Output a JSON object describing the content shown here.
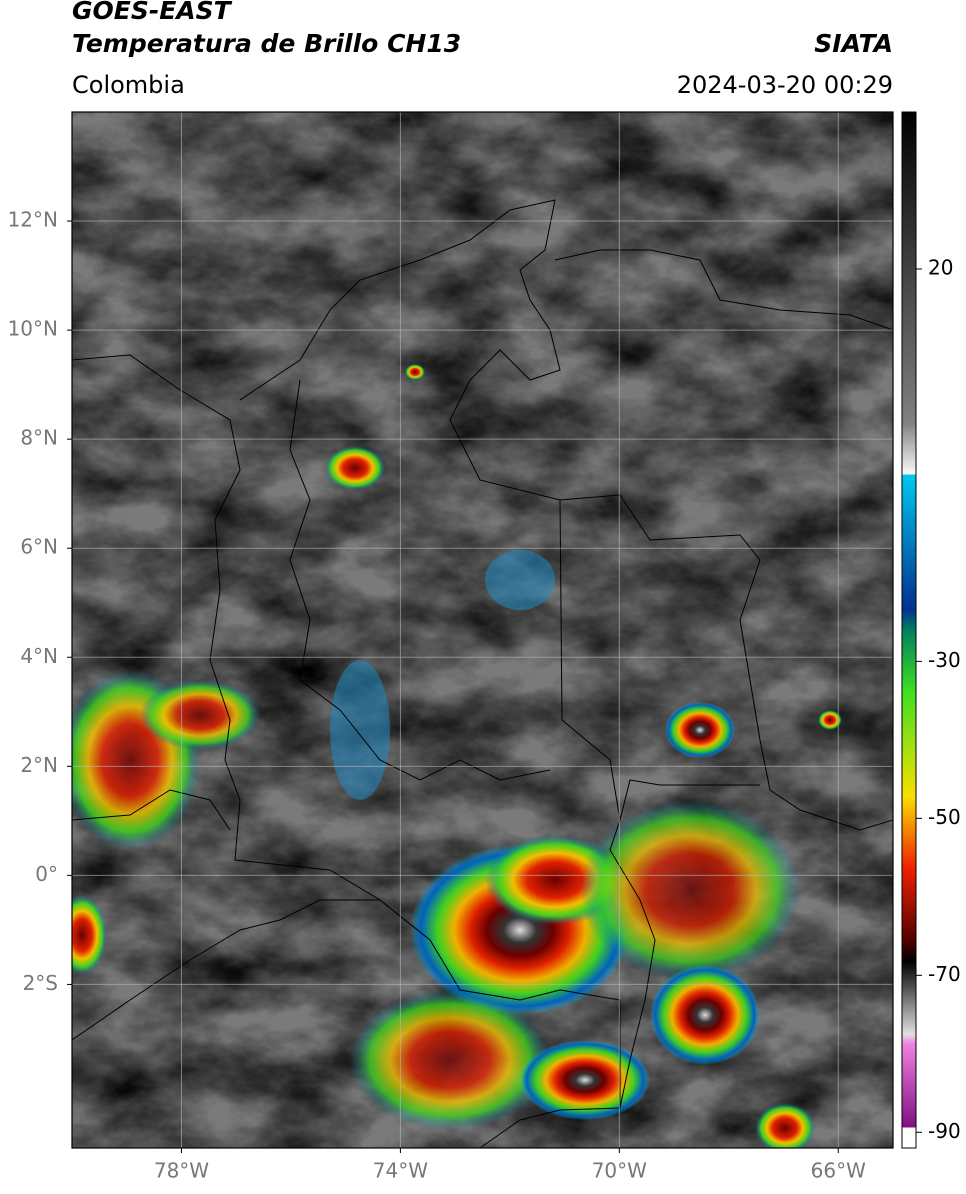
{
  "header": {
    "title_line1": "GOES-EAST",
    "title_line2": "Temperatura de Brillo CH13",
    "source": "SIATA",
    "region": "Colombia",
    "datetime": "2024-03-20 00:29"
  },
  "map": {
    "xlim": [
      -80,
      -65
    ],
    "ylim": [
      -5,
      14
    ],
    "lat_ticks": [
      {
        "value": 12,
        "label": "12°N"
      },
      {
        "value": 10,
        "label": "10°N"
      },
      {
        "value": 8,
        "label": "8°N"
      },
      {
        "value": 6,
        "label": "6°N"
      },
      {
        "value": 4,
        "label": "4°N"
      },
      {
        "value": 2,
        "label": "2°N"
      },
      {
        "value": 0,
        "label": "0°"
      },
      {
        "value": -2,
        "label": "2°S"
      }
    ],
    "lon_ticks": [
      {
        "value": -78,
        "label": "78°W"
      },
      {
        "value": -74,
        "label": "74°W"
      },
      {
        "value": -70,
        "label": "70°W"
      },
      {
        "value": -66,
        "label": "66°W"
      }
    ],
    "grid": true
  },
  "colorbar": {
    "lim": [
      -92,
      40
    ],
    "ticks": [
      20,
      -30,
      -50,
      -70,
      -90
    ]
  }
}
